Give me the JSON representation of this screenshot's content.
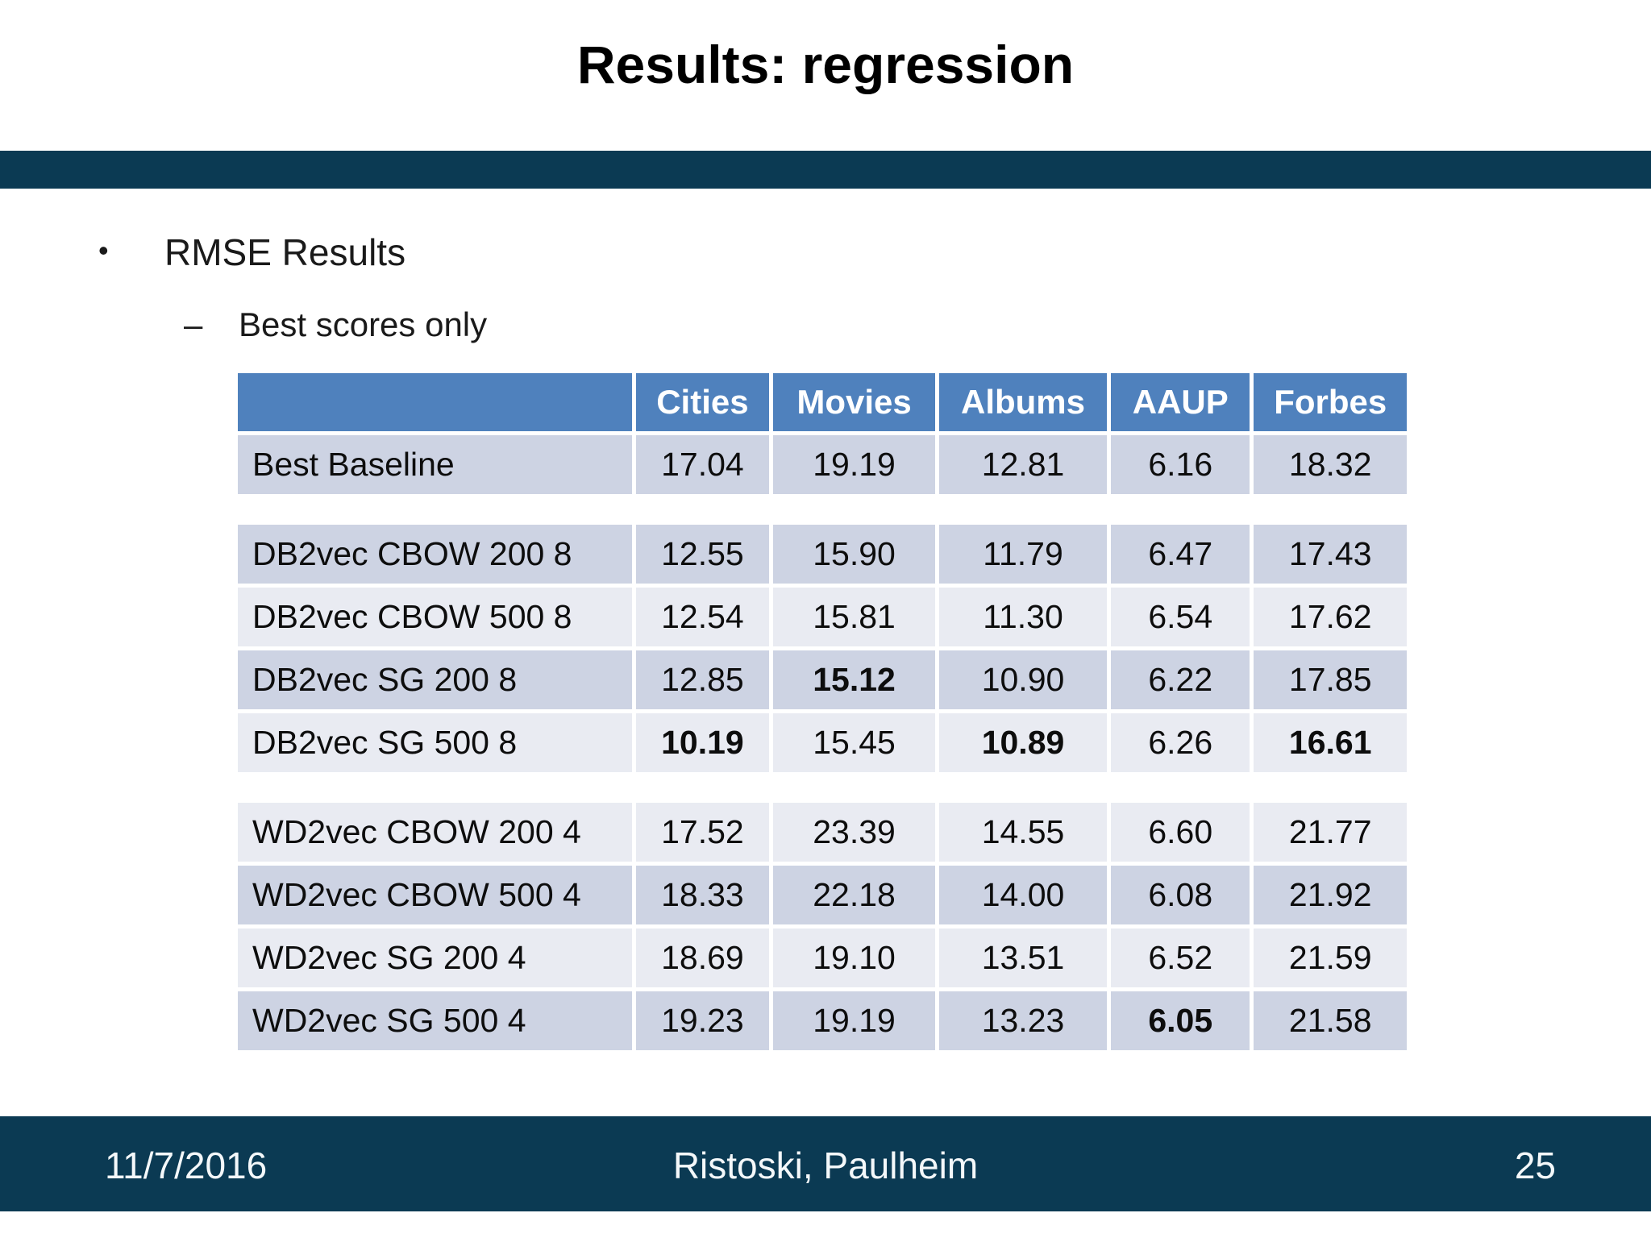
{
  "slide": {
    "title": "Results: regression",
    "bullet_char": "•",
    "bullet": "RMSE Results",
    "sub_bullet_char": "–",
    "sub_bullet": "Best scores only",
    "footer": {
      "date": "11/7/2016",
      "authors": "Ristoski, Paulheim",
      "page": "25"
    }
  },
  "colors": {
    "bar_dark_blue": "#0b3a53",
    "table_header_blue": "#4f81bd",
    "row_band_dark": "#cdd3e3",
    "row_band_light": "#e9ebf2",
    "header_text": "#ffffff",
    "body_text": "#0d0d0d"
  },
  "chart_data": {
    "type": "table",
    "title": "RMSE Results (best scores only)",
    "columns": [
      "",
      "Cities",
      "Movies",
      "Albums",
      "AAUP",
      "Forbes"
    ],
    "col_widths_pct": [
      34.3,
      11.6,
      14.1,
      14.6,
      12.1,
      13.3
    ],
    "rows": [
      {
        "label": "Best Baseline",
        "values": [
          "17.04",
          "19.19",
          "12.81",
          "6.16",
          "18.32"
        ],
        "bold": [],
        "band": "dark",
        "gap_after": true
      },
      {
        "label": "DB2vec CBOW 200 8",
        "values": [
          "12.55",
          "15.90",
          "11.79",
          "6.47",
          "17.43"
        ],
        "bold": [],
        "band": "dark",
        "gap_after": false
      },
      {
        "label": "DB2vec CBOW 500 8",
        "values": [
          "12.54",
          "15.81",
          "11.30",
          "6.54",
          "17.62"
        ],
        "bold": [],
        "band": "light",
        "gap_after": false
      },
      {
        "label": "DB2vec SG 200 8",
        "values": [
          "12.85",
          "15.12",
          "10.90",
          "6.22",
          "17.85"
        ],
        "bold": [
          1
        ],
        "band": "dark",
        "gap_after": false
      },
      {
        "label": "DB2vec SG 500 8",
        "values": [
          "10.19",
          "15.45",
          "10.89",
          "6.26",
          "16.61"
        ],
        "bold": [
          0,
          2,
          4
        ],
        "band": "light",
        "gap_after": true
      },
      {
        "label": "WD2vec CBOW 200 4",
        "values": [
          "17.52",
          "23.39",
          "14.55",
          "6.60",
          "21.77"
        ],
        "bold": [],
        "band": "light",
        "gap_after": false
      },
      {
        "label": "WD2vec CBOW 500 4",
        "values": [
          "18.33",
          "22.18",
          "14.00",
          "6.08",
          "21.92"
        ],
        "bold": [],
        "band": "dark",
        "gap_after": false
      },
      {
        "label": "WD2vec SG 200 4",
        "values": [
          "18.69",
          "19.10",
          "13.51",
          "6.52",
          "21.59"
        ],
        "bold": [],
        "band": "light",
        "gap_after": false
      },
      {
        "label": "WD2vec SG 500 4",
        "values": [
          "19.23",
          "19.19",
          "13.23",
          "6.05",
          "21.58"
        ],
        "bold": [
          3
        ],
        "band": "dark",
        "gap_after": false
      }
    ]
  }
}
